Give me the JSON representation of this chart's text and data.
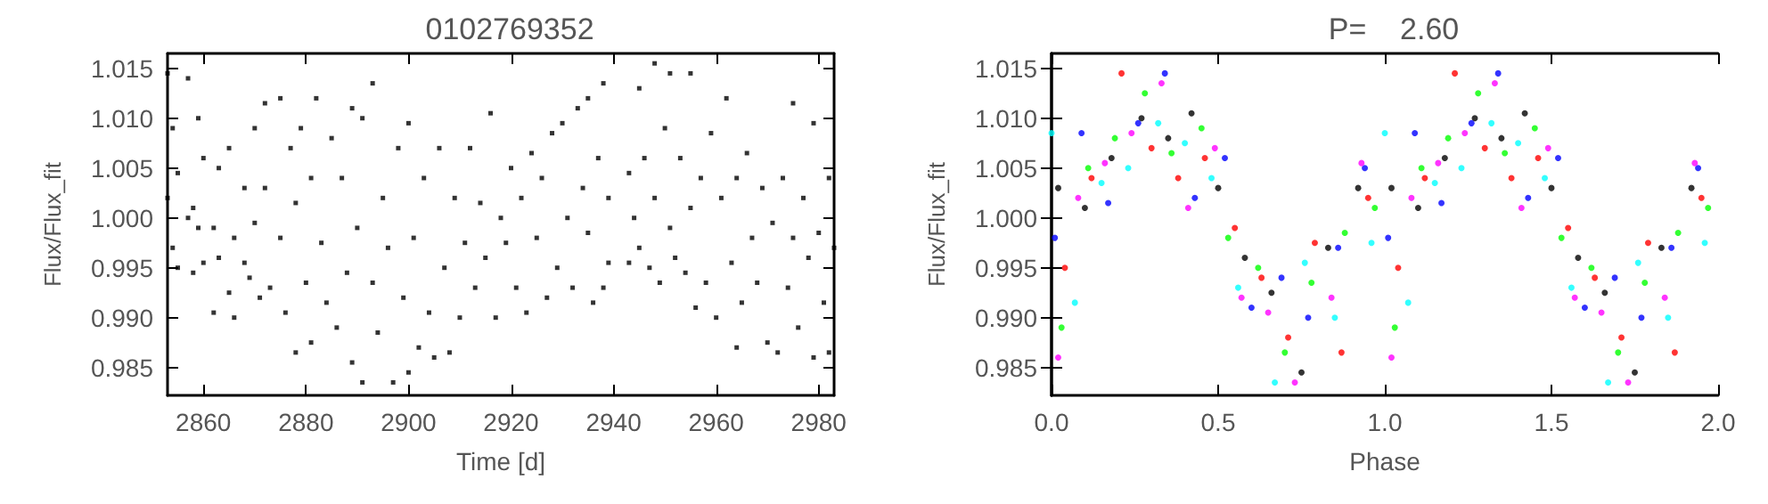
{
  "chart_data": [
    {
      "type": "scatter",
      "title": "0102769352",
      "xlabel": "Time [d]",
      "ylabel": "Flux/Flux_fit",
      "marker": "square",
      "grid": false,
      "xlim": [
        2853,
        2983
      ],
      "xticks": [
        2860,
        2880,
        2900,
        2920,
        2940,
        2960,
        2980
      ],
      "ylim": [
        0.9822,
        1.0165
      ],
      "yticks": [
        {
          "value": 0.985,
          "label": "0.985"
        },
        {
          "value": 0.99,
          "label": "0.990"
        },
        {
          "value": 0.995,
          "label": "0.995"
        },
        {
          "value": 1,
          "label": "1.000"
        },
        {
          "value": 1.005,
          "label": "1.005"
        },
        {
          "value": 1.01,
          "label": "1.010"
        },
        {
          "value": 1.015,
          "label": "1.015"
        }
      ],
      "series": [
        {
          "color": "#000000",
          "x": [
            2853,
            2853,
            2854,
            2854,
            2855,
            2855,
            2857,
            2857,
            2858,
            2858,
            2859,
            2859,
            2860,
            2860,
            2862,
            2862,
            2863,
            2863,
            2865,
            2865,
            2866,
            2866,
            2868,
            2868,
            2869,
            2870,
            2870,
            2871,
            2872,
            2872,
            2873,
            2875,
            2875,
            2876,
            2877,
            2878,
            2878,
            2879,
            2880,
            2881,
            2881,
            2882,
            2883,
            2884,
            2885,
            2886,
            2887,
            2888,
            2889,
            2889,
            2890,
            2891,
            2891,
            2893,
            2893,
            2894,
            2895,
            2896,
            2897,
            2898,
            2899,
            2900,
            2900,
            2901,
            2902,
            2903,
            2904,
            2905,
            2906,
            2907,
            2908,
            2909,
            2910,
            2911,
            2912,
            2913,
            2914,
            2915,
            2916,
            2917,
            2918,
            2919,
            2920,
            2921,
            2922,
            2923,
            2924,
            2925,
            2926,
            2927,
            2928,
            2929,
            2930,
            2931,
            2932,
            2933,
            2934,
            2935,
            2935,
            2936,
            2937,
            2938,
            2938,
            2939,
            2939,
            2943,
            2943,
            2944,
            2945,
            2945,
            2946,
            2947,
            2948,
            2948,
            2949,
            2950,
            2951,
            2951,
            2952,
            2953,
            2954,
            2955,
            2955,
            2956,
            2957,
            2958,
            2959,
            2960,
            2961,
            2962,
            2963,
            2964,
            2964,
            2965,
            2966,
            2967,
            2968,
            2969,
            2970,
            2971,
            2972,
            2973,
            2974,
            2975,
            2975,
            2976,
            2977,
            2978,
            2979,
            2979,
            2980,
            2981,
            2982,
            2982,
            2983
          ],
          "values": [
            1.0145,
            1.002,
            1.009,
            0.997,
            1.0045,
            0.995,
            1.014,
            1.0,
            1.001,
            0.9945,
            1.01,
            0.999,
            1.006,
            0.9955,
            0.999,
            0.9905,
            1.005,
            0.996,
            1.007,
            0.9925,
            0.998,
            0.99,
            1.003,
            0.9955,
            0.994,
            1.009,
            0.9995,
            0.992,
            1.0115,
            1.003,
            0.993,
            1.012,
            0.998,
            0.9905,
            1.007,
            0.9865,
            1.0015,
            1.009,
            0.9935,
            0.9875,
            1.004,
            1.012,
            0.9975,
            0.9915,
            1.008,
            0.989,
            1.004,
            0.9945,
            1.011,
            0.9855,
            0.999,
            1.01,
            0.9835,
            1.0135,
            0.9935,
            0.9885,
            1.002,
            0.997,
            0.9835,
            1.007,
            0.992,
            0.9845,
            1.0095,
            0.998,
            0.987,
            1.004,
            0.9905,
            0.986,
            1.007,
            0.995,
            0.9865,
            1.002,
            0.99,
            0.9975,
            1.007,
            0.993,
            1.0015,
            0.996,
            1.0105,
            0.99,
            1.0,
            0.9975,
            1.005,
            0.993,
            1.002,
            0.9905,
            1.0065,
            0.998,
            1.004,
            0.992,
            1.0085,
            0.995,
            1.0095,
            1.0,
            0.993,
            1.011,
            1.003,
            0.9985,
            1.012,
            0.9915,
            1.006,
            1.0135,
            0.993,
            1.002,
            0.9955,
            1.0045,
            0.9955,
            1.0,
            1.013,
            0.997,
            1.006,
            0.995,
            1.0155,
            1.002,
            0.9935,
            1.009,
            0.999,
            1.0145,
            0.996,
            1.006,
            0.9945,
            1.0145,
            1.001,
            0.991,
            1.004,
            0.9935,
            1.0085,
            0.99,
            1.002,
            1.012,
            0.9955,
            0.987,
            1.004,
            0.9915,
            1.0065,
            0.998,
            0.9935,
            1.003,
            0.9875,
            0.9995,
            0.9865,
            1.004,
            0.993,
            1.0115,
            0.998,
            0.989,
            1.002,
            0.996,
            1.0095,
            0.986,
            0.9985,
            0.9915,
            1.004,
            0.9865,
            0.997
          ]
        }
      ]
    },
    {
      "type": "scatter",
      "title": "P=    2.60",
      "xlabel": "Phase",
      "ylabel": "Flux/Flux_fit",
      "marker": "circle",
      "grid": false,
      "xlim": [
        0,
        2
      ],
      "xticks": [
        {
          "value": 0,
          "label": "0.0"
        },
        {
          "value": 0.5,
          "label": "0.5"
        },
        {
          "value": 1,
          "label": "1.0"
        },
        {
          "value": 1.5,
          "label": "1.5"
        },
        {
          "value": 2,
          "label": "2.0"
        }
      ],
      "ylim": [
        0.9822,
        1.0165
      ],
      "yticks": [
        {
          "value": 0.985,
          "label": "0.985"
        },
        {
          "value": 0.99,
          "label": "0.990"
        },
        {
          "value": 0.995,
          "label": "0.995"
        },
        {
          "value": 1,
          "label": "1.000"
        },
        {
          "value": 1.005,
          "label": "1.005"
        },
        {
          "value": 1.01,
          "label": "1.010"
        },
        {
          "value": 1.015,
          "label": "1.015"
        }
      ],
      "series": [
        {
          "color": "#000000",
          "x": [
            0.02,
            0.1,
            0.18,
            0.27,
            0.35,
            0.42,
            0.5,
            0.58,
            0.66,
            0.75,
            0.83,
            0.92,
            1.02,
            1.1,
            1.18,
            1.27,
            1.35,
            1.42,
            1.5,
            1.58,
            1.66,
            1.75,
            1.83,
            1.92
          ],
          "values": [
            1.003,
            1.001,
            1.006,
            1.01,
            1.008,
            1.0105,
            1.003,
            0.996,
            0.9925,
            0.9845,
            0.997,
            1.003,
            1.003,
            1.001,
            1.006,
            1.01,
            1.008,
            1.0105,
            1.003,
            0.996,
            0.9925,
            0.9845,
            0.997,
            1.003
          ]
        },
        {
          "color": "#ff0000",
          "x": [
            0.04,
            0.12,
            0.21,
            0.3,
            0.38,
            0.46,
            0.55,
            0.63,
            0.71,
            0.79,
            0.87,
            0.95,
            1.04,
            1.12,
            1.21,
            1.3,
            1.38,
            1.46,
            1.55,
            1.63,
            1.71,
            1.79,
            1.87,
            1.95
          ],
          "values": [
            0.995,
            1.004,
            1.0145,
            1.007,
            1.004,
            1.006,
            0.999,
            0.994,
            0.988,
            0.9975,
            0.9865,
            1.002,
            0.995,
            1.004,
            1.0145,
            1.007,
            1.004,
            1.006,
            0.999,
            0.994,
            0.988,
            0.9975,
            0.9865,
            1.002
          ]
        },
        {
          "color": "#0000ff",
          "x": [
            0.01,
            0.09,
            0.17,
            0.26,
            0.34,
            0.43,
            0.52,
            0.6,
            0.69,
            0.77,
            0.86,
            0.94,
            1.01,
            1.09,
            1.17,
            1.26,
            1.34,
            1.43,
            1.52,
            1.6,
            1.69,
            1.77,
            1.86,
            1.94
          ],
          "values": [
            0.998,
            1.0085,
            1.0015,
            1.0095,
            1.0145,
            1.002,
            1.006,
            0.991,
            0.994,
            0.99,
            0.997,
            1.005,
            0.998,
            1.0085,
            1.0015,
            1.0095,
            1.0145,
            1.002,
            1.006,
            0.991,
            0.994,
            0.99,
            0.997,
            1.005
          ]
        },
        {
          "color": "#00ff00",
          "x": [
            0.03,
            0.11,
            0.19,
            0.28,
            0.36,
            0.45,
            0.53,
            0.62,
            0.7,
            0.78,
            0.88,
            0.97,
            1.03,
            1.11,
            1.19,
            1.28,
            1.36,
            1.45,
            1.53,
            1.62,
            1.7,
            1.78,
            1.88,
            1.97
          ],
          "values": [
            0.989,
            1.005,
            1.008,
            1.0125,
            1.0065,
            1.009,
            0.998,
            0.995,
            0.9865,
            0.9935,
            0.9985,
            1.001,
            0.989,
            1.005,
            1.008,
            1.0125,
            1.0065,
            1.009,
            0.998,
            0.995,
            0.9865,
            0.9935,
            0.9985,
            1.001
          ]
        },
        {
          "color": "#ff00ff",
          "x": [
            0.02,
            0.08,
            0.16,
            0.24,
            0.33,
            0.41,
            0.49,
            0.57,
            0.65,
            0.73,
            0.84,
            0.93,
            1.02,
            1.08,
            1.16,
            1.24,
            1.33,
            1.41,
            1.49,
            1.57,
            1.65,
            1.73,
            1.84,
            1.93
          ],
          "values": [
            0.986,
            1.002,
            1.0055,
            1.0085,
            1.0135,
            1.001,
            1.007,
            0.992,
            0.9905,
            0.9835,
            0.992,
            1.0055,
            0.986,
            1.002,
            1.0055,
            1.0085,
            1.0135,
            1.001,
            1.007,
            0.992,
            0.9905,
            0.9835,
            0.992,
            1.0055
          ]
        },
        {
          "color": "#00ffff",
          "x": [
            0.0,
            0.07,
            0.15,
            0.23,
            0.32,
            0.4,
            0.48,
            0.56,
            0.67,
            0.76,
            0.85,
            0.96,
            1.0,
            1.07,
            1.15,
            1.23,
            1.32,
            1.4,
            1.48,
            1.56,
            1.67,
            1.76,
            1.85,
            1.96
          ],
          "values": [
            1.0085,
            0.9915,
            1.0035,
            1.005,
            1.0095,
            1.0075,
            1.004,
            0.993,
            0.9835,
            0.9955,
            0.99,
            0.9975,
            1.0085,
            0.9915,
            1.0035,
            1.005,
            1.0095,
            1.0075,
            1.004,
            0.993,
            0.9835,
            0.9955,
            0.99,
            0.9975
          ]
        }
      ]
    }
  ]
}
